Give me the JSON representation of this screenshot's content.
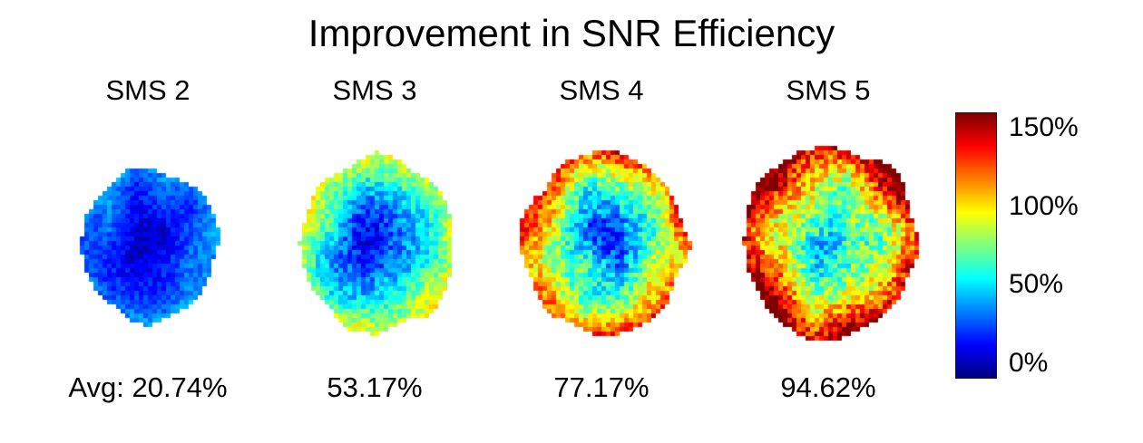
{
  "figure": {
    "title": "Improvement in SNR Efficiency",
    "panels": [
      {
        "label": "SMS 2",
        "avg_label": "Avg: 20.74%",
        "avg": 20.74
      },
      {
        "label": "SMS 3",
        "avg_label": "53.17%",
        "avg": 53.17
      },
      {
        "label": "SMS 4",
        "avg_label": "77.17%",
        "avg": 77.17
      },
      {
        "label": "SMS 5",
        "avg_label": "94.62%",
        "avg": 94.62
      }
    ],
    "colorbar": {
      "ticks": [
        "150%",
        "100%",
        "50%",
        "0%"
      ],
      "tick_values": [
        150,
        100,
        50,
        0
      ],
      "vmin": -10,
      "vmax": 160,
      "colormap": "jet"
    }
  },
  "chart_data": {
    "type": "heatmap",
    "title": "Improvement in SNR Efficiency",
    "panels": [
      {
        "label": "SMS 2",
        "average_improvement_pct": 20.74
      },
      {
        "label": "SMS 3",
        "average_improvement_pct": 53.17
      },
      {
        "label": "SMS 4",
        "average_improvement_pct": 77.17
      },
      {
        "label": "SMS 5",
        "average_improvement_pct": 94.62
      }
    ],
    "colorbar": {
      "tick_labels": [
        "150%",
        "100%",
        "50%",
        "0%"
      ],
      "tick_values_pct": [
        150,
        100,
        50,
        0
      ],
      "range_pct": [
        0,
        150
      ],
      "colormap": "jet",
      "orientation": "vertical",
      "position": "right"
    },
    "description": "Four axial brain-slice voxel heatmaps of SNR efficiency improvement for SMS factors 2-5. Improvement increases with SMS factor; values are higher toward the cortical edge (red/dark red at SMS 4-5) and lower in central regions (blue/cyan core)."
  }
}
